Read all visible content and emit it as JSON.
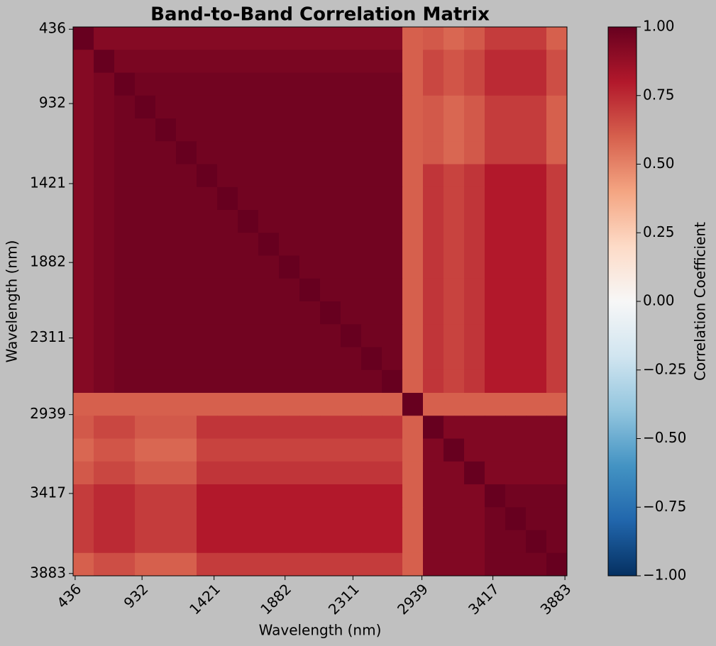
{
  "chart_data": {
    "type": "heatmap",
    "title": "Band-to-Band Correlation Matrix",
    "xlabel": "Wavelength (nm)",
    "ylabel": "Wavelength (nm)",
    "colorbar_label": "Correlation Coefficient",
    "colormap": "RdBu_r",
    "clim": [
      -1,
      1
    ],
    "xlim": [
      0,
      24
    ],
    "ylim": [
      24,
      0
    ],
    "xticks": [
      {
        "value": 0.1,
        "label": "436"
      },
      {
        "value": 3.35,
        "label": "932"
      },
      {
        "value": 6.85,
        "label": "1421"
      },
      {
        "value": 10.3,
        "label": "1882"
      },
      {
        "value": 13.6,
        "label": "2311"
      },
      {
        "value": 16.95,
        "label": "2939"
      },
      {
        "value": 20.4,
        "label": "3417"
      },
      {
        "value": 23.9,
        "label": "3883"
      }
    ],
    "yticks": [
      {
        "value": 0.1,
        "label": "436"
      },
      {
        "value": 3.35,
        "label": "932"
      },
      {
        "value": 6.85,
        "label": "1421"
      },
      {
        "value": 10.3,
        "label": "1882"
      },
      {
        "value": 13.6,
        "label": "2311"
      },
      {
        "value": 16.95,
        "label": "2939"
      },
      {
        "value": 20.4,
        "label": "3417"
      },
      {
        "value": 23.9,
        "label": "3883"
      }
    ],
    "cticks": [
      {
        "value": 1,
        "label": "1.00"
      },
      {
        "value": 0.75,
        "label": "0.75"
      },
      {
        "value": 0.5,
        "label": "0.50"
      },
      {
        "value": 0.25,
        "label": "0.25"
      },
      {
        "value": 0,
        "label": "0.00"
      },
      {
        "value": -0.25,
        "label": "−0.25"
      },
      {
        "value": -0.5,
        "label": "−0.50"
      },
      {
        "value": -0.75,
        "label": "−0.75"
      },
      {
        "value": -1,
        "label": "−1.00"
      }
    ],
    "z": [
      [
        1,
        0.92,
        0.92,
        0.92,
        0.92,
        0.92,
        0.92,
        0.92,
        0.92,
        0.92,
        0.92,
        0.92,
        0.92,
        0.92,
        0.92,
        0.92,
        0.6,
        0.62,
        0.58,
        0.62,
        0.7,
        0.7,
        0.7,
        0.6
      ],
      [
        0.92,
        1,
        0.95,
        0.95,
        0.95,
        0.95,
        0.95,
        0.95,
        0.95,
        0.95,
        0.95,
        0.95,
        0.95,
        0.95,
        0.95,
        0.95,
        0.6,
        0.67,
        0.63,
        0.67,
        0.75,
        0.75,
        0.75,
        0.65
      ],
      [
        0.92,
        0.95,
        1,
        0.97,
        0.97,
        0.97,
        0.97,
        0.97,
        0.97,
        0.97,
        0.97,
        0.97,
        0.97,
        0.97,
        0.97,
        0.97,
        0.6,
        0.67,
        0.63,
        0.67,
        0.75,
        0.75,
        0.75,
        0.65
      ],
      [
        0.92,
        0.95,
        0.97,
        1,
        0.97,
        0.97,
        0.97,
        0.97,
        0.97,
        0.97,
        0.97,
        0.97,
        0.97,
        0.97,
        0.97,
        0.97,
        0.6,
        0.62,
        0.58,
        0.62,
        0.7,
        0.7,
        0.7,
        0.6
      ],
      [
        0.92,
        0.95,
        0.97,
        0.97,
        1,
        0.97,
        0.97,
        0.97,
        0.97,
        0.97,
        0.97,
        0.97,
        0.97,
        0.97,
        0.97,
        0.97,
        0.6,
        0.62,
        0.58,
        0.62,
        0.7,
        0.7,
        0.7,
        0.6
      ],
      [
        0.92,
        0.95,
        0.97,
        0.97,
        0.97,
        1,
        0.97,
        0.97,
        0.97,
        0.97,
        0.97,
        0.97,
        0.97,
        0.97,
        0.97,
        0.97,
        0.6,
        0.62,
        0.58,
        0.62,
        0.7,
        0.7,
        0.7,
        0.6
      ],
      [
        0.92,
        0.95,
        0.97,
        0.97,
        0.97,
        0.97,
        1,
        0.97,
        0.97,
        0.97,
        0.97,
        0.97,
        0.97,
        0.97,
        0.97,
        0.97,
        0.6,
        0.72,
        0.68,
        0.72,
        0.8,
        0.8,
        0.8,
        0.7
      ],
      [
        0.92,
        0.95,
        0.97,
        0.97,
        0.97,
        0.97,
        0.97,
        1,
        0.97,
        0.97,
        0.97,
        0.97,
        0.97,
        0.97,
        0.97,
        0.97,
        0.6,
        0.72,
        0.68,
        0.72,
        0.8,
        0.8,
        0.8,
        0.7
      ],
      [
        0.92,
        0.95,
        0.97,
        0.97,
        0.97,
        0.97,
        0.97,
        0.97,
        1,
        0.97,
        0.97,
        0.97,
        0.97,
        0.97,
        0.97,
        0.97,
        0.6,
        0.72,
        0.68,
        0.72,
        0.8,
        0.8,
        0.8,
        0.7
      ],
      [
        0.92,
        0.95,
        0.97,
        0.97,
        0.97,
        0.97,
        0.97,
        0.97,
        0.97,
        1,
        0.97,
        0.97,
        0.97,
        0.97,
        0.97,
        0.97,
        0.6,
        0.72,
        0.68,
        0.72,
        0.8,
        0.8,
        0.8,
        0.7
      ],
      [
        0.92,
        0.95,
        0.97,
        0.97,
        0.97,
        0.97,
        0.97,
        0.97,
        0.97,
        0.97,
        1,
        0.97,
        0.97,
        0.97,
        0.97,
        0.97,
        0.6,
        0.72,
        0.68,
        0.72,
        0.8,
        0.8,
        0.8,
        0.7
      ],
      [
        0.92,
        0.95,
        0.97,
        0.97,
        0.97,
        0.97,
        0.97,
        0.97,
        0.97,
        0.97,
        0.97,
        1,
        0.97,
        0.97,
        0.97,
        0.97,
        0.6,
        0.72,
        0.68,
        0.72,
        0.8,
        0.8,
        0.8,
        0.7
      ],
      [
        0.92,
        0.95,
        0.97,
        0.97,
        0.97,
        0.97,
        0.97,
        0.97,
        0.97,
        0.97,
        0.97,
        0.97,
        1,
        0.97,
        0.97,
        0.97,
        0.6,
        0.72,
        0.68,
        0.72,
        0.8,
        0.8,
        0.8,
        0.7
      ],
      [
        0.92,
        0.95,
        0.97,
        0.97,
        0.97,
        0.97,
        0.97,
        0.97,
        0.97,
        0.97,
        0.97,
        0.97,
        0.97,
        1,
        0.97,
        0.97,
        0.6,
        0.72,
        0.68,
        0.72,
        0.8,
        0.8,
        0.8,
        0.7
      ],
      [
        0.92,
        0.95,
        0.97,
        0.97,
        0.97,
        0.97,
        0.97,
        0.97,
        0.97,
        0.97,
        0.97,
        0.97,
        0.97,
        0.97,
        1,
        0.97,
        0.6,
        0.72,
        0.68,
        0.72,
        0.8,
        0.8,
        0.8,
        0.7
      ],
      [
        0.92,
        0.95,
        0.97,
        0.97,
        0.97,
        0.97,
        0.97,
        0.97,
        0.97,
        0.97,
        0.97,
        0.97,
        0.97,
        0.97,
        0.97,
        1,
        0.6,
        0.72,
        0.68,
        0.72,
        0.8,
        0.8,
        0.8,
        0.7
      ],
      [
        0.6,
        0.6,
        0.6,
        0.6,
        0.6,
        0.6,
        0.6,
        0.6,
        0.6,
        0.6,
        0.6,
        0.6,
        0.6,
        0.6,
        0.6,
        0.6,
        1,
        0.6,
        0.6,
        0.6,
        0.6,
        0.6,
        0.6,
        0.6
      ],
      [
        0.62,
        0.67,
        0.67,
        0.62,
        0.62,
        0.62,
        0.72,
        0.72,
        0.72,
        0.72,
        0.72,
        0.72,
        0.72,
        0.72,
        0.72,
        0.72,
        0.6,
        1,
        0.93,
        0.93,
        0.93,
        0.93,
        0.93,
        0.93
      ],
      [
        0.58,
        0.63,
        0.63,
        0.58,
        0.58,
        0.58,
        0.68,
        0.68,
        0.68,
        0.68,
        0.68,
        0.68,
        0.68,
        0.68,
        0.68,
        0.68,
        0.6,
        0.93,
        1,
        0.93,
        0.93,
        0.93,
        0.93,
        0.93
      ],
      [
        0.62,
        0.67,
        0.67,
        0.62,
        0.62,
        0.62,
        0.72,
        0.72,
        0.72,
        0.72,
        0.72,
        0.72,
        0.72,
        0.72,
        0.72,
        0.72,
        0.6,
        0.93,
        0.93,
        1,
        0.93,
        0.93,
        0.93,
        0.93
      ],
      [
        0.7,
        0.75,
        0.75,
        0.7,
        0.7,
        0.7,
        0.8,
        0.8,
        0.8,
        0.8,
        0.8,
        0.8,
        0.8,
        0.8,
        0.8,
        0.8,
        0.6,
        0.93,
        0.93,
        0.93,
        1,
        0.97,
        0.97,
        0.97
      ],
      [
        0.7,
        0.75,
        0.75,
        0.7,
        0.7,
        0.7,
        0.8,
        0.8,
        0.8,
        0.8,
        0.8,
        0.8,
        0.8,
        0.8,
        0.8,
        0.8,
        0.6,
        0.93,
        0.93,
        0.93,
        0.97,
        1,
        0.97,
        0.97
      ],
      [
        0.7,
        0.75,
        0.75,
        0.7,
        0.7,
        0.7,
        0.8,
        0.8,
        0.8,
        0.8,
        0.8,
        0.8,
        0.8,
        0.8,
        0.8,
        0.8,
        0.6,
        0.93,
        0.93,
        0.93,
        0.97,
        0.97,
        1,
        0.97
      ],
      [
        0.6,
        0.65,
        0.65,
        0.6,
        0.6,
        0.6,
        0.7,
        0.7,
        0.7,
        0.7,
        0.7,
        0.7,
        0.7,
        0.7,
        0.7,
        0.7,
        0.6,
        0.93,
        0.93,
        0.93,
        0.97,
        0.97,
        0.97,
        1
      ]
    ]
  }
}
